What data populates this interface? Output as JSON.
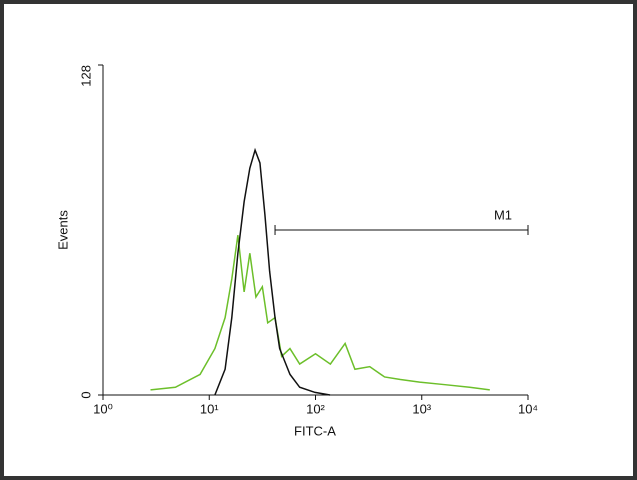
{
  "chart_data": {
    "type": "histogram-line",
    "x_label": "FITC-A",
    "y_label": "Events",
    "xscale": "log",
    "xlim": [
      1,
      10000
    ],
    "xticks": [
      {
        "value": 1,
        "label": "10⁰"
      },
      {
        "value": 10,
        "label": "10¹"
      },
      {
        "value": 100,
        "label": "10²"
      },
      {
        "value": 1000,
        "label": "10³"
      },
      {
        "value": 10000,
        "label": "10⁴"
      }
    ],
    "ylim": [
      0,
      128
    ],
    "yticks": [
      0,
      128
    ],
    "series": [
      {
        "color": "#6cbf2a",
        "x": [
          2.8,
          4.8,
          8.2,
          11.3,
          14.1,
          16.3,
          18.6,
          21.3,
          24.1,
          27.5,
          31.6,
          35.5,
          41.6,
          48,
          57.5,
          71,
          100,
          138,
          190,
          235,
          324,
          447,
          630,
          955,
          1660,
          2820,
          4370
        ],
        "values": [
          2,
          3,
          8,
          18,
          30,
          45,
          62,
          40,
          55,
          38,
          42,
          28,
          30,
          15,
          18,
          12,
          16,
          12,
          20,
          10,
          11,
          7,
          6,
          5,
          4,
          3,
          2
        ]
      },
      {
        "color": "#111111",
        "x": [
          11.3,
          14.1,
          16.3,
          18.6,
          21.3,
          24.1,
          27,
          30,
          33.4,
          37,
          41.6,
          46,
          57.5,
          71,
          99,
          137
        ],
        "values": [
          0,
          10,
          30,
          55,
          75,
          88,
          95,
          90,
          70,
          48,
          30,
          18,
          8,
          3,
          1,
          0
        ]
      }
    ],
    "marker": {
      "label": "M1",
      "range": [
        41.6,
        10000
      ],
      "y": 64
    }
  }
}
